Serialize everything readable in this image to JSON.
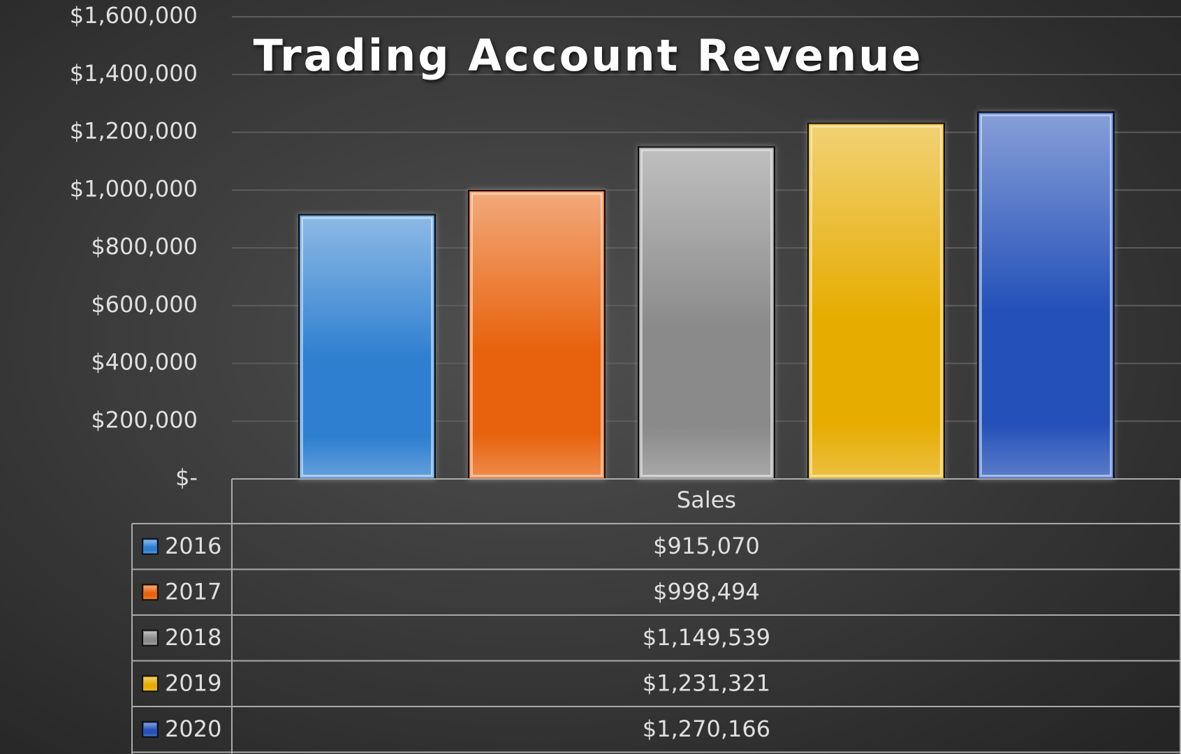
{
  "chart_data": {
    "type": "bar",
    "title": "Trading Account Revenue",
    "categories": [
      "Sales"
    ],
    "series": [
      {
        "name": "2016",
        "color": "#2e7fd0",
        "values": [
          915070
        ],
        "value_labels": [
          "$915,070"
        ]
      },
      {
        "name": "2017",
        "color": "#e8620a",
        "values": [
          998494
        ],
        "value_labels": [
          "$998,494"
        ]
      },
      {
        "name": "2018",
        "color": "#8a8a8a",
        "values": [
          1149539
        ],
        "value_labels": [
          "$1,149,539"
        ]
      },
      {
        "name": "2019",
        "color": "#e6ac00",
        "values": [
          1231321
        ],
        "value_labels": [
          "$1,231,321"
        ]
      },
      {
        "name": "2020",
        "color": "#2450b8",
        "values": [
          1270166
        ],
        "value_labels": [
          "$1,270,166"
        ]
      }
    ],
    "ylim": [
      0,
      1600000
    ],
    "yticks": [
      {
        "value": 0,
        "label": "$-"
      },
      {
        "value": 200000,
        "label": "$200,000"
      },
      {
        "value": 400000,
        "label": "$400,000"
      },
      {
        "value": 600000,
        "label": "$600,000"
      },
      {
        "value": 800000,
        "label": "$800,000"
      },
      {
        "value": 1000000,
        "label": "$1,000,000"
      },
      {
        "value": 1200000,
        "label": "$1,200,000"
      },
      {
        "value": 1400000,
        "label": "$1,400,000"
      },
      {
        "value": 1600000,
        "label": "$1,600,000"
      }
    ],
    "grid": true
  }
}
